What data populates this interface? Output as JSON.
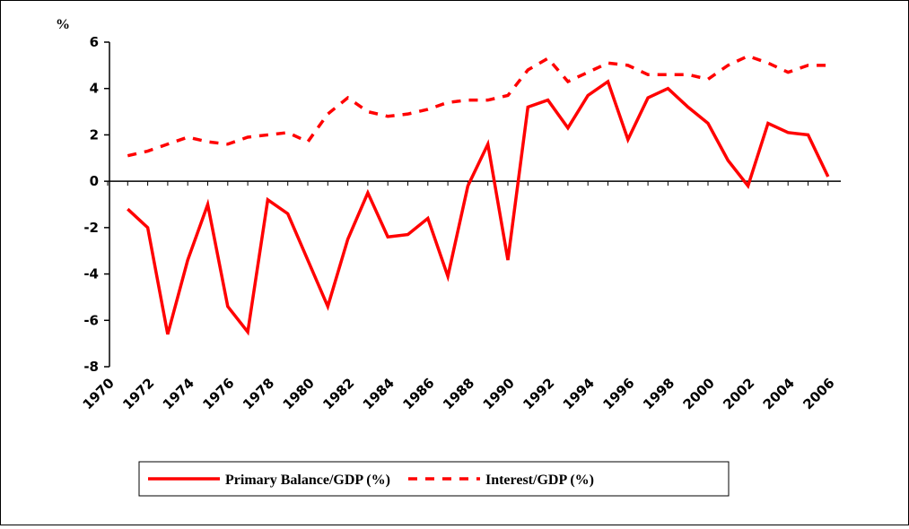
{
  "chart_data": {
    "type": "line",
    "y_label": "%",
    "categories": [
      "1970",
      null,
      "1972",
      null,
      "1974",
      null,
      "1976",
      null,
      "1978",
      null,
      "1980",
      null,
      "1982",
      null,
      "1984",
      null,
      "1986",
      null,
      "1988",
      null,
      "1990",
      null,
      "1992",
      null,
      "1994",
      null,
      "1996",
      null,
      "1998",
      null,
      "2000",
      null,
      "2002",
      null,
      "2004",
      null,
      "2006"
    ],
    "series": [
      {
        "name": "Primary Balance/GDP (%)",
        "color": "#ff0000",
        "dash": "solid",
        "values": [
          null,
          -1.2,
          -2,
          -6.6,
          -3.4,
          -1,
          -5.4,
          -6.5,
          -0.8,
          -1.4,
          -3.4,
          -5.4,
          -2.5,
          -0.5,
          -2.4,
          -2.3,
          -1.6,
          -4.1,
          -0.2,
          1.6,
          -3.4,
          3.2,
          3.5,
          2.3,
          3.7,
          4.3,
          1.8,
          3.6,
          4.0,
          3.2,
          2.5,
          0.9,
          -0.2,
          2.5,
          2.1,
          2.0,
          0.2
        ]
      },
      {
        "name": "Interest/GDP (%)",
        "color": "#ff0000",
        "dash": "dashed",
        "values": [
          null,
          1.1,
          1.3,
          1.6,
          1.9,
          1.7,
          1.6,
          1.9,
          2.0,
          2.1,
          1.7,
          2.9,
          3.6,
          3.0,
          2.8,
          2.9,
          3.1,
          3.4,
          3.5,
          3.5,
          3.7,
          4.8,
          5.3,
          4.3,
          4.7,
          5.1,
          5.0,
          4.6,
          4.6,
          4.6,
          4.4,
          5.0,
          5.4,
          5.1,
          4.7,
          5.0,
          5.0
        ]
      }
    ],
    "ylim": [
      -8,
      6
    ],
    "yticks": [
      -8,
      -6,
      -4,
      -2,
      0,
      2,
      4,
      6
    ],
    "legend": "bottom"
  }
}
